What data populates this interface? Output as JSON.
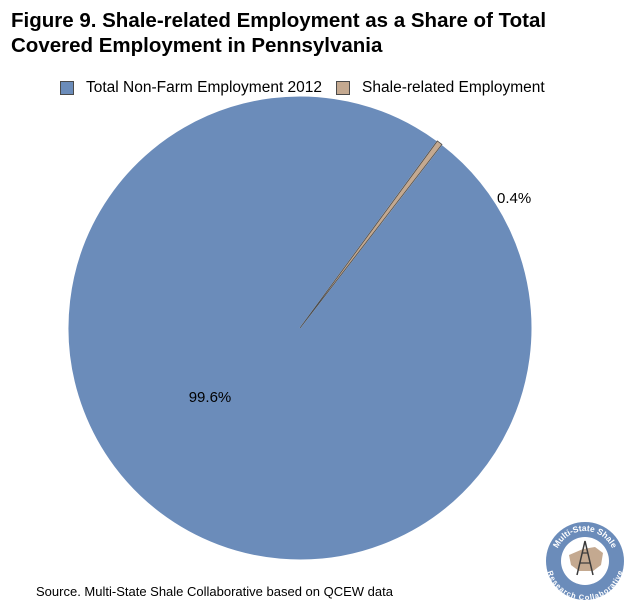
{
  "title": "Figure 9. Shale-related Employment as a Share of Total Covered Employment in Pennsylvania",
  "source": "Source. Multi-State Shale Collaborative based on QCEW data",
  "logo": {
    "icon": "multi-state-shale-research-collaborative-logo",
    "text_top": "Multi-State Shale",
    "text_bottom": "Research Collaborative"
  },
  "chart_data": {
    "type": "pie",
    "legend_position": "top",
    "slices": [
      {
        "name": "Total Non-Farm Employment 2012",
        "value": 99.6,
        "label": "99.6%",
        "color": "#6b8cba"
      },
      {
        "name": "Shale-related Employment",
        "value": 0.4,
        "label": "0.4%",
        "color": "#c4a990"
      }
    ]
  }
}
